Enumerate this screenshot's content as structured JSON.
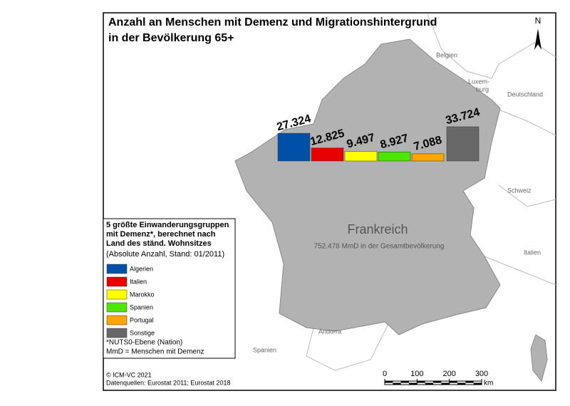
{
  "title_lines": [
    "Anzahl an Menschen mit Demenz und Migrationshintergrund",
    "in der Bevölkerung 65+"
  ],
  "north": "N",
  "map_labels": {
    "country": "Frankreich",
    "total": "752.478 MmD in der Gesamtbevölkerung",
    "belgium": "Belgien",
    "lux_1": "Luxem-",
    "lux_2": "burg",
    "germany": "Deutschland",
    "switzerland": "Schweiz",
    "italy": "Italien",
    "andorra": "Andorra",
    "spain": "Spanien"
  },
  "chart_data": {
    "type": "bar",
    "categories": [
      "Algerien",
      "Italien",
      "Marokko",
      "Spanien",
      "Portugal",
      "Sonstige"
    ],
    "values": [
      27324,
      12825,
      9497,
      8927,
      7088,
      33724
    ],
    "value_labels": [
      "27.324",
      "12.825",
      "9.497",
      "8.927",
      "7.088",
      "33.724"
    ],
    "colors": [
      "#0050a8",
      "#e60000",
      "#ffff00",
      "#4ce600",
      "#ffa500",
      "#686868"
    ]
  },
  "legend": {
    "title_lines": [
      "5 größte Einwanderungsgruppen",
      "mit Demenz*, berechnet nach",
      "Land des ständ. Wohnsitzes"
    ],
    "subtitle": "(Absolute Anzahl, Stand: 01/2011)",
    "notes": [
      "*NUTS0-Ebene (Nation)",
      "MmD = Menschen mit Demenz"
    ]
  },
  "credits": [
    "© ICM-VC 2021",
    "Datenquellen: Eurostat 2011; Eurostat 2018"
  ],
  "scale_bar": {
    "ticks": [
      0,
      100,
      200,
      300
    ],
    "unit": "km"
  }
}
